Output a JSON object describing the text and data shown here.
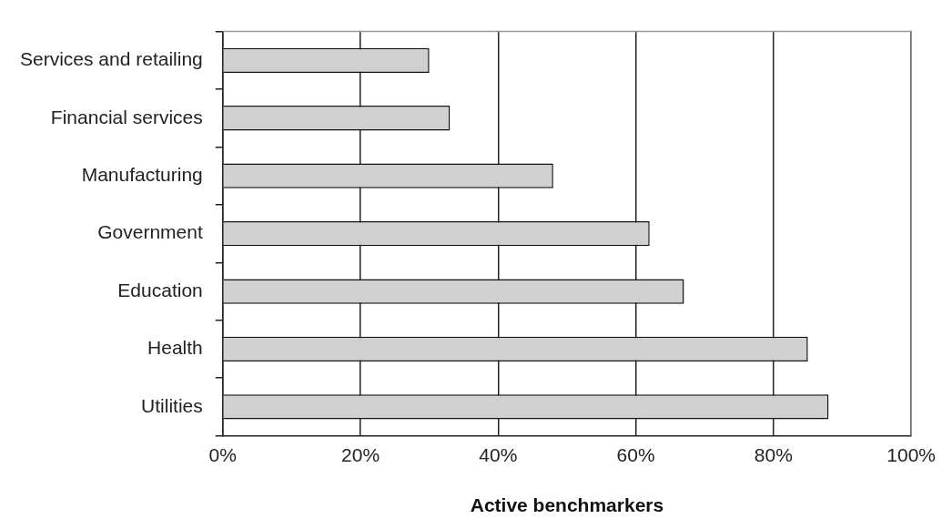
{
  "chart_data": {
    "type": "bar",
    "orientation": "horizontal",
    "xlabel": "Active benchmarkers",
    "categories": [
      "Services and retailing",
      "Financial services",
      "Manufacturing",
      "Government",
      "Education",
      "Health",
      "Utilities"
    ],
    "values": [
      30,
      33,
      48,
      62,
      67,
      85,
      88
    ],
    "color": "#d0d0d0",
    "xlim": [
      0,
      100
    ],
    "xticks": [
      {
        "value": 0,
        "label": "0%"
      },
      {
        "value": 20,
        "label": "20%"
      },
      {
        "value": 40,
        "label": "40%"
      },
      {
        "value": 60,
        "label": "60%"
      },
      {
        "value": 80,
        "label": "80%"
      },
      {
        "value": 100,
        "label": "100%"
      }
    ],
    "grid": "x",
    "legend": false
  }
}
